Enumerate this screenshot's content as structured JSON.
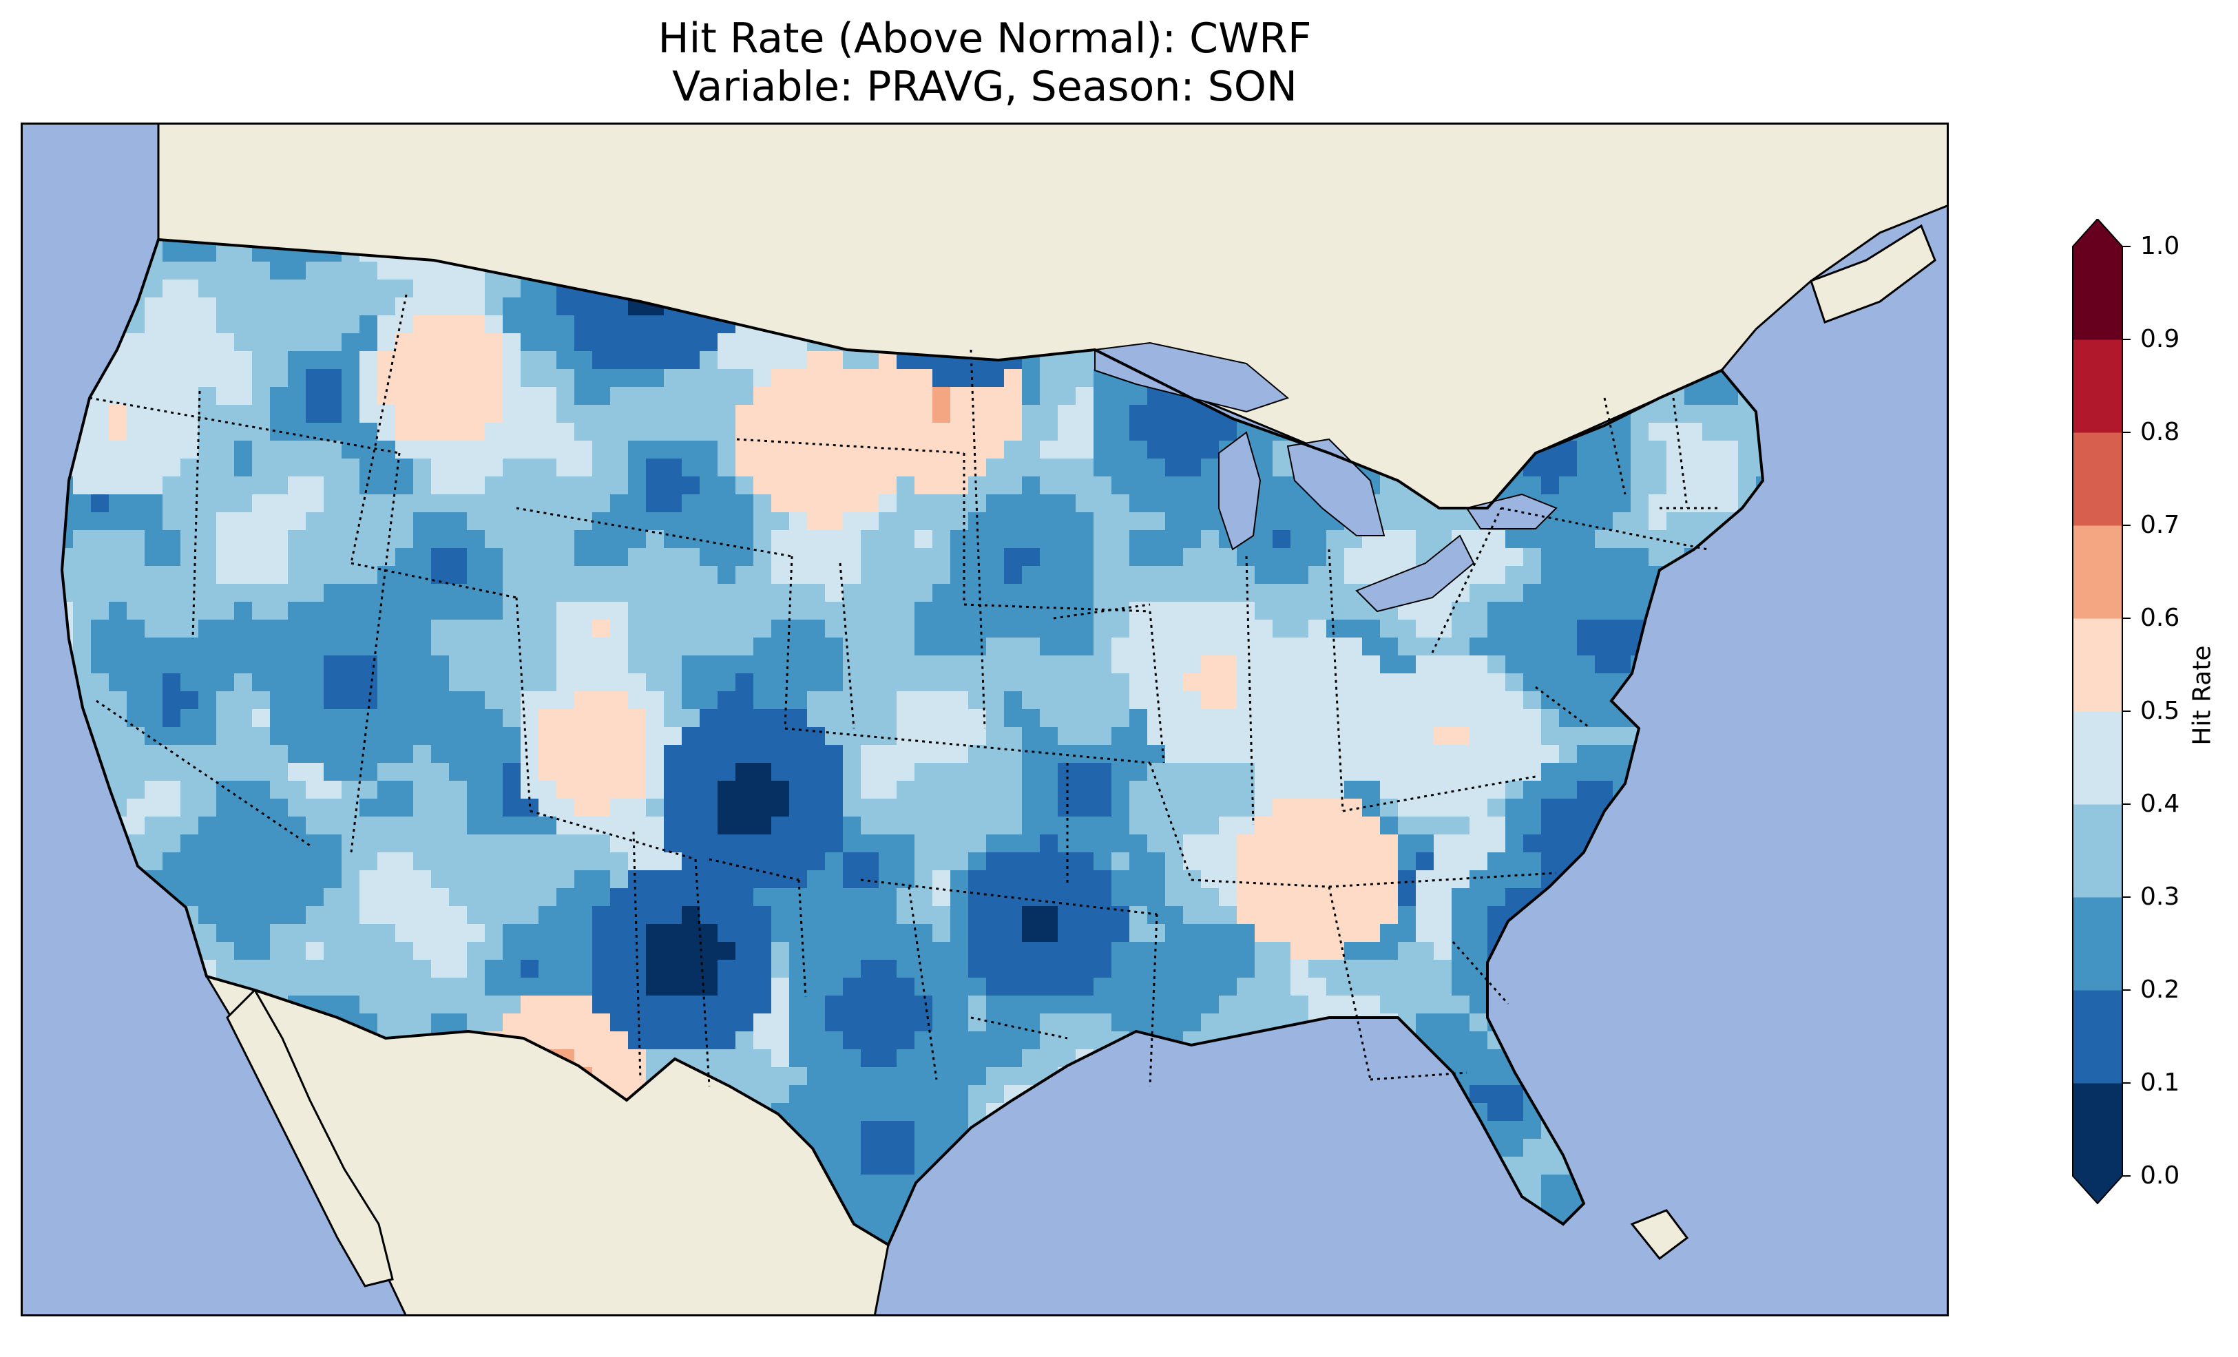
{
  "title_line1": "Hit Rate (Above Normal): CWRF",
  "title_line2": "Variable: PRAVG, Season: SON",
  "colorbar": {
    "label": "Hit Rate",
    "ticks": [
      "0.0",
      "0.1",
      "0.2",
      "0.3",
      "0.4",
      "0.5",
      "0.6",
      "0.7",
      "0.8",
      "0.9",
      "1.0"
    ],
    "colors": [
      "#053061",
      "#2166ac",
      "#4393c3",
      "#92c5de",
      "#d1e5f0",
      "#fddbc7",
      "#f4a582",
      "#d6604d",
      "#b2182b",
      "#67001f"
    ],
    "extend": "both"
  },
  "map": {
    "ocean_color": "#9bb5e0",
    "land_color": "#efecdc",
    "region": "Continental United States",
    "field_description_note": ""
  },
  "chart_data": {
    "type": "heatmap",
    "title": "Hit Rate (Above Normal): CWRF",
    "subtitle": "Variable: PRAVG, Season: SON",
    "colorbar_label": "Hit Rate",
    "value_range": [
      0.0,
      1.0
    ],
    "levels": [
      0.0,
      0.1,
      0.2,
      0.3,
      0.4,
      0.5,
      0.6,
      0.7,
      0.8,
      0.9,
      1.0
    ]
  }
}
